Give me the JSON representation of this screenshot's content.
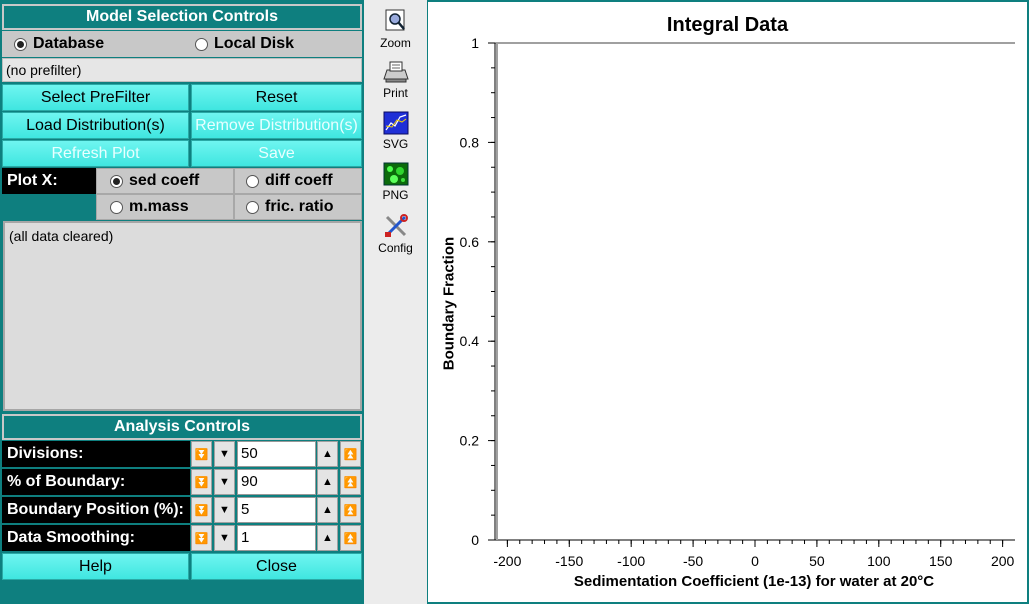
{
  "model_selection": {
    "header": "Model Selection Controls",
    "source_options": [
      {
        "label": "Database",
        "selected": true
      },
      {
        "label": "Local Disk",
        "selected": false
      }
    ],
    "prefilter_text": "(no prefilter)",
    "buttons": {
      "select_prefilter": "Select PreFilter",
      "reset": "Reset",
      "load_distributions": "Load Distribution(s)",
      "remove_distributions": "Remove Distribution(s)",
      "refresh_plot": "Refresh Plot",
      "save": "Save"
    },
    "plot_x_label": "Plot X:",
    "plot_x_options": [
      {
        "label": "sed coeff",
        "selected": true
      },
      {
        "label": "diff coeff",
        "selected": false
      },
      {
        "label": "m.mass",
        "selected": false
      },
      {
        "label": "fric. ratio",
        "selected": false
      }
    ],
    "status_text": "(all data cleared)"
  },
  "analysis": {
    "header": "Analysis Controls",
    "counters": [
      {
        "label": "Divisions:",
        "value": "50"
      },
      {
        "label": "% of Boundary:",
        "value": "90"
      },
      {
        "label": "Boundary Position (%):",
        "value": "5"
      },
      {
        "label": "Data Smoothing:",
        "value": "1"
      }
    ],
    "buttons": {
      "help": "Help",
      "close": "Close"
    }
  },
  "toolbar": {
    "items": [
      {
        "label": "Zoom",
        "icon": "zoom-icon"
      },
      {
        "label": "Print",
        "icon": "printer-icon"
      },
      {
        "label": "SVG",
        "icon": "svg-image-icon"
      },
      {
        "label": "PNG",
        "icon": "png-image-icon"
      },
      {
        "label": "Config",
        "icon": "config-tools-icon"
      }
    ]
  },
  "chart_data": {
    "type": "line",
    "title": "Integral Data",
    "xlabel": "Sedimentation Coefficient (1e-13) for water at 20°C",
    "ylabel": "Boundary Fraction",
    "xlim": [
      -210,
      210
    ],
    "ylim": [
      0,
      1
    ],
    "x_ticks": [
      -200,
      -150,
      -100,
      -50,
      0,
      50,
      100,
      150,
      200
    ],
    "y_ticks": [
      0,
      0.2,
      0.4,
      0.6,
      0.8,
      1
    ],
    "x_tick_labels": [
      "-200",
      "-150",
      "-100",
      "-50",
      "0",
      "50",
      "100",
      "150",
      "200"
    ],
    "y_tick_labels": [
      "0",
      "0.2",
      "0.4",
      "0.6",
      "0.8",
      "1"
    ],
    "series": [],
    "grid": false,
    "colors": {
      "axis": "#000000",
      "frame": "#a0a0a0"
    }
  }
}
